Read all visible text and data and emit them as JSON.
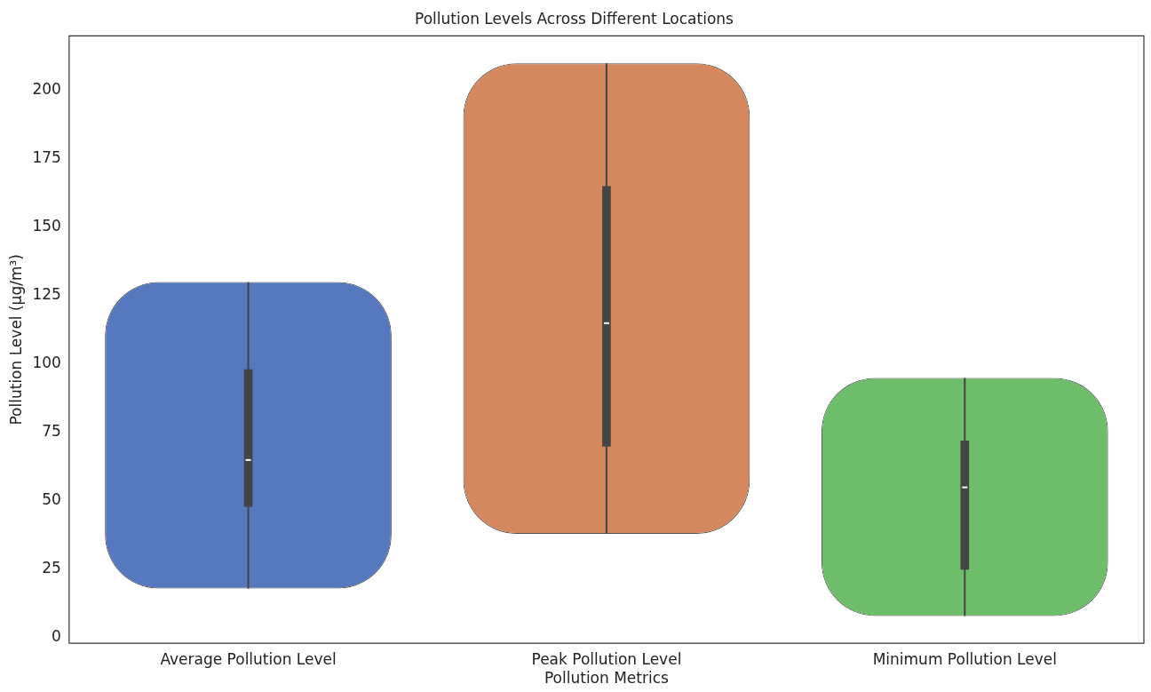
{
  "chart_data": {
    "type": "box",
    "title": "Pollution Levels Across Different Locations",
    "xlabel": "Pollution Metrics",
    "ylabel": "Pollution Level (µg/m³)",
    "categories": [
      "Average Pollution Level",
      "Peak Pollution Level",
      "Minimum Pollution Level"
    ],
    "series": [
      {
        "type": "bar",
        "colors": [
          "#5578bf",
          "#d5875d",
          "#6dbd6a"
        ],
        "base": [
          18,
          38,
          8
        ],
        "values": [
          112,
          172,
          87
        ]
      },
      {
        "color": "#444444",
        "boxes": [
          {
            "low": 18,
            "q1": 48,
            "median": 65,
            "q3": 98,
            "high": 130
          },
          {
            "low": 38,
            "q1": 70,
            "median": 115,
            "q3": 165,
            "high": 210
          },
          {
            "low": 8,
            "q1": 25,
            "median": 55,
            "q3": 72,
            "high": 95
          }
        ]
      }
    ],
    "ylim": [
      -2,
      220
    ],
    "yticks": [
      0,
      25,
      50,
      75,
      100,
      125,
      150,
      175,
      200
    ],
    "grid": false,
    "legend": false
  }
}
